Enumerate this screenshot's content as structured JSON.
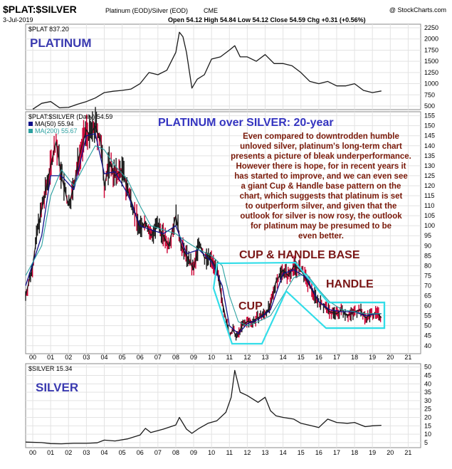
{
  "header": {
    "symbol": "$PLAT:$SILVER",
    "description": "Platinum (EOD)/Silver (EOD)",
    "exchange": "CME",
    "date": "3-Jul-2019",
    "watermark": "@ StockCharts.com",
    "ohlc": "Open 54.12  High 54.84  Low 54.12  Close 54.59  Chg +0.31 (+0.56%)"
  },
  "colors": {
    "price_line": "#1a1a1a",
    "bar_red": "#cc0033",
    "ma50": "#10108a",
    "ma200": "#2aa0a0",
    "pattern": "#33dde8",
    "title_blue": "#3434c0",
    "annotation_text": "#7a1a0a",
    "grid": "#e3e3e3"
  },
  "chart_data": [
    {
      "type": "line",
      "panel": "top",
      "legend": "$PLAT 837.20",
      "label": "PLATINUM",
      "series": [
        {
          "name": "$PLAT",
          "x": [
            2000.0,
            2000.5,
            2001.0,
            2001.5,
            2002.0,
            2002.5,
            2003.0,
            2003.5,
            2004.0,
            2004.5,
            2005.0,
            2005.5,
            2006.0,
            2006.5,
            2007.0,
            2007.5,
            2008.0,
            2008.2,
            2008.4,
            2008.6,
            2008.9,
            2009.2,
            2009.6,
            2010.0,
            2010.5,
            2011.0,
            2011.3,
            2011.6,
            2012.0,
            2012.5,
            2013.0,
            2013.5,
            2014.0,
            2014.5,
            2015.0,
            2015.5,
            2016.0,
            2016.5,
            2017.0,
            2017.5,
            2018.0,
            2018.5,
            2019.0,
            2019.5
          ],
          "values": [
            430,
            560,
            600,
            460,
            470,
            540,
            600,
            680,
            800,
            830,
            850,
            880,
            1000,
            1250,
            1200,
            1300,
            1700,
            2150,
            2050,
            1700,
            900,
            1100,
            1200,
            1550,
            1600,
            1750,
            1850,
            1600,
            1600,
            1500,
            1650,
            1450,
            1450,
            1400,
            1250,
            1050,
            1000,
            1050,
            950,
            950,
            1000,
            850,
            800,
            837
          ]
        }
      ],
      "yticks": [
        500,
        750,
        1000,
        1250,
        1500,
        1750,
        2000,
        2250
      ],
      "ylim": [
        420,
        2330
      ]
    },
    {
      "type": "line",
      "panel": "main",
      "legend_main": "$PLAT:$SILVER (Daily) 54.59",
      "legend_ma50": "MA(50) 55.94",
      "legend_ma200": "MA(200) 55.67",
      "title": "PLATINUM over SILVER: 20-year",
      "annotation_lines": [
        "Even compared to downtrodden humble",
        "unloved silver, platinum's long-term chart",
        "presents a picture of bleak underperformance.",
        "However there is hope, for in recent years it",
        "has started to improve, and we can even see",
        "a giant Cup & Handle base pattern on the",
        "chart, which suggests that platinum is set",
        "to outperform silver, and given that the",
        "outlook for silver is now rosy, the outlook",
        "for platinum may be presumed to be",
        "even better."
      ],
      "pattern_labels": {
        "base": "CUP & HANDLE BASE",
        "cup": "CUP",
        "handle": "HANDLE"
      },
      "series": [
        {
          "name": "$PLAT:$SILVER",
          "x": [
            1999.6,
            2000.0,
            2000.3,
            2000.6,
            2001.0,
            2001.3,
            2001.6,
            2002.0,
            2002.3,
            2002.6,
            2003.0,
            2003.2,
            2003.5,
            2003.8,
            2004.0,
            2004.3,
            2004.6,
            2005.0,
            2005.3,
            2005.6,
            2006.0,
            2006.3,
            2006.6,
            2007.0,
            2007.3,
            2007.6,
            2008.0,
            2008.3,
            2008.6,
            2009.0,
            2009.3,
            2009.6,
            2010.0,
            2010.3,
            2010.6,
            2011.0,
            2011.2,
            2011.4,
            2011.7,
            2012.0,
            2012.3,
            2012.6,
            2013.0,
            2013.3,
            2013.6,
            2014.0,
            2014.3,
            2014.6,
            2015.0,
            2015.3,
            2015.6,
            2016.0,
            2016.3,
            2016.6,
            2017.0,
            2017.3,
            2017.6,
            2018.0,
            2018.3,
            2018.6,
            2019.0,
            2019.3,
            2019.5
          ],
          "values": [
            65,
            80,
            100,
            112,
            130,
            142,
            125,
            110,
            120,
            135,
            148,
            145,
            150,
            142,
            120,
            132,
            125,
            128,
            118,
            110,
            98,
            102,
            95,
            100,
            95,
            90,
            105,
            90,
            85,
            78,
            92,
            84,
            83,
            78,
            62,
            45,
            48,
            44,
            50,
            52,
            52,
            54,
            56,
            60,
            72,
            78,
            75,
            80,
            78,
            73,
            68,
            62,
            60,
            57,
            56,
            58,
            55,
            57,
            58,
            54,
            56,
            56,
            54
          ]
        },
        {
          "name": "MA(50)",
          "x": [
            1999.6,
            2000.5,
            2001.0,
            2001.6,
            2002.3,
            2003.0,
            2003.5,
            2004.0,
            2004.6,
            2005.3,
            2006.0,
            2006.6,
            2007.3,
            2008.0,
            2008.6,
            2009.3,
            2010.0,
            2010.6,
            2011.0,
            2011.5,
            2012.0,
            2012.6,
            2013.3,
            2014.0,
            2014.6,
            2015.3,
            2016.0,
            2016.6,
            2017.3,
            2018.0,
            2018.6,
            2019.3,
            2019.5
          ],
          "values": [
            70,
            95,
            125,
            125,
            118,
            145,
            146,
            126,
            127,
            116,
            100,
            98,
            96,
            100,
            86,
            88,
            82,
            70,
            50,
            46,
            51,
            53,
            58,
            76,
            78,
            74,
            62,
            58,
            57,
            57,
            55,
            56,
            56
          ]
        },
        {
          "name": "MA(200)",
          "x": [
            1999.6,
            2000.5,
            2001.0,
            2001.6,
            2002.3,
            2003.0,
            2003.5,
            2004.0,
            2004.6,
            2005.3,
            2006.0,
            2006.6,
            2007.3,
            2008.0,
            2008.6,
            2009.3,
            2010.0,
            2010.6,
            2011.0,
            2011.5,
            2012.0,
            2012.6,
            2013.3,
            2014.0,
            2014.6,
            2015.3,
            2016.0,
            2016.6,
            2017.3,
            2018.0,
            2018.6,
            2019.3,
            2019.5
          ],
          "values": [
            75,
            90,
            115,
            128,
            120,
            132,
            140,
            138,
            130,
            123,
            110,
            100,
            98,
            96,
            92,
            88,
            85,
            80,
            65,
            52,
            50,
            52,
            55,
            65,
            74,
            76,
            68,
            62,
            58,
            57,
            56,
            56,
            56
          ]
        }
      ],
      "yticks": [
        40,
        45,
        50,
        55,
        60,
        65,
        70,
        75,
        80,
        85,
        90,
        95,
        100,
        105,
        110,
        115,
        120,
        125,
        130,
        135,
        140,
        145,
        150,
        155
      ],
      "ylim": [
        36,
        157
      ]
    },
    {
      "type": "line",
      "panel": "bottom",
      "legend": "$SILVER 15.34",
      "label": "SILVER",
      "series": [
        {
          "name": "$SILVER",
          "x": [
            1999.6,
            2000.5,
            2001.0,
            2001.6,
            2002.3,
            2003.0,
            2003.6,
            2004.0,
            2004.6,
            2005.3,
            2006.0,
            2006.3,
            2006.6,
            2007.3,
            2008.0,
            2008.2,
            2008.6,
            2008.9,
            2009.3,
            2009.8,
            2010.3,
            2010.8,
            2011.1,
            2011.3,
            2011.6,
            2012.0,
            2012.6,
            2013.0,
            2013.3,
            2013.6,
            2014.0,
            2014.6,
            2015.0,
            2015.6,
            2016.0,
            2016.5,
            2017.0,
            2017.6,
            2018.0,
            2018.6,
            2019.0,
            2019.5
          ],
          "values": [
            5.3,
            5.0,
            4.4,
            4.3,
            4.6,
            4.6,
            4.9,
            6.5,
            6.0,
            7.2,
            9.5,
            13.5,
            11.0,
            13.0,
            15.5,
            20.0,
            13.0,
            10.5,
            13.5,
            16.5,
            18.0,
            23.0,
            32.0,
            48.0,
            35.0,
            33.0,
            29.0,
            32.0,
            24.0,
            21.0,
            20.0,
            19.0,
            16.5,
            15.0,
            14.0,
            19.0,
            17.0,
            16.5,
            17.0,
            14.5,
            15.0,
            15.3
          ]
        }
      ],
      "yticks": [
        5,
        10,
        15,
        20,
        25,
        30,
        35,
        40,
        45,
        50
      ],
      "ylim": [
        2,
        52
      ]
    }
  ],
  "x_axis": {
    "labels": [
      "00",
      "01",
      "02",
      "03",
      "04",
      "05",
      "06",
      "07",
      "08",
      "09",
      "10",
      "11",
      "12",
      "13",
      "14",
      "15",
      "16",
      "17",
      "18",
      "19",
      "20",
      "21"
    ]
  }
}
